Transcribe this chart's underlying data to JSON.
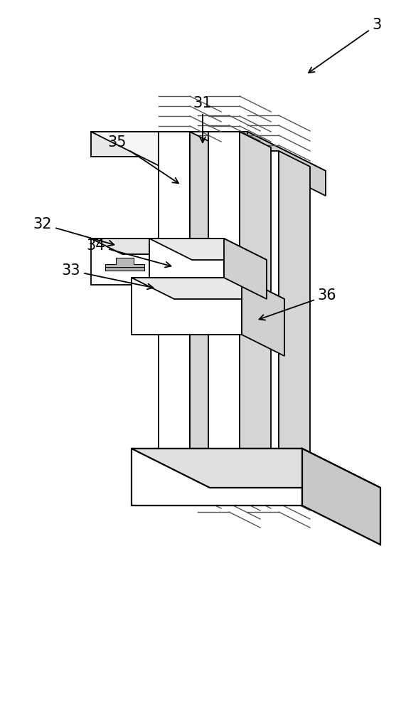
{
  "bg": "#ffffff",
  "lc": "#000000",
  "lw": 1.3,
  "gray_top": "#e8e8e8",
  "gray_side": "#c8c8c8",
  "gray_dark": "#b0b0b0",
  "white": "#ffffff"
}
